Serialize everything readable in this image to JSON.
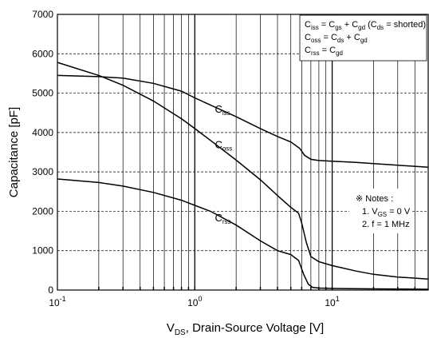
{
  "chart_data": {
    "type": "line",
    "xscale": "log",
    "xlim": [
      0.1,
      50
    ],
    "ylim": [
      0,
      7000
    ],
    "grid": true,
    "xlabel": {
      "main": "V",
      "sub": "DS",
      "rest": ", Drain-Source Voltage [V]"
    },
    "ylabel": "Capacitance [pF]",
    "y_ticks": [
      0,
      1000,
      2000,
      3000,
      4000,
      5000,
      6000,
      7000
    ],
    "x_ticks": [
      {
        "value": 0.1,
        "base": "10",
        "exp": "-1"
      },
      {
        "value": 1,
        "base": "10",
        "exp": "0"
      },
      {
        "value": 10,
        "base": "10",
        "exp": "1"
      }
    ],
    "series": [
      {
        "name": {
          "main": "C",
          "sub": "iss"
        },
        "label_at": [
          1.4,
          4500
        ],
        "x": [
          0.1,
          0.2,
          0.3,
          0.5,
          0.8,
          1.0,
          1.3,
          2,
          3,
          4,
          5,
          5.8,
          6.3,
          7,
          8,
          10,
          15,
          20,
          30,
          50
        ],
        "y": [
          5450,
          5420,
          5380,
          5250,
          5050,
          4880,
          4700,
          4400,
          4100,
          3900,
          3760,
          3600,
          3420,
          3320,
          3290,
          3270,
          3240,
          3210,
          3170,
          3120
        ]
      },
      {
        "name": {
          "main": "C",
          "sub": "oss"
        },
        "label_at": [
          1.4,
          3600
        ],
        "x": [
          0.1,
          0.2,
          0.3,
          0.5,
          0.8,
          1.0,
          1.3,
          2,
          3,
          4,
          5,
          5.7,
          6.0,
          6.5,
          7,
          8,
          10,
          15,
          20,
          30,
          50
        ],
        "y": [
          5780,
          5450,
          5200,
          4800,
          4350,
          4100,
          3800,
          3300,
          2800,
          2400,
          2100,
          1950,
          1700,
          1200,
          850,
          720,
          620,
          480,
          400,
          330,
          280
        ]
      },
      {
        "name": {
          "main": "C",
          "sub": "rss"
        },
        "label_at": [
          1.4,
          1750
        ],
        "x": [
          0.1,
          0.2,
          0.3,
          0.5,
          0.8,
          1.0,
          1.3,
          2,
          3,
          4,
          5,
          5.7,
          6.2,
          6.7,
          7.2,
          8,
          10,
          20,
          50
        ],
        "y": [
          2820,
          2730,
          2640,
          2480,
          2280,
          2150,
          2000,
          1650,
          1250,
          1000,
          900,
          750,
          400,
          150,
          70,
          50,
          40,
          30,
          20
        ]
      }
    ],
    "legend": {
      "position": "top-right",
      "lines": [
        [
          {
            "t": "C"
          },
          {
            "s": "iss"
          },
          {
            "t": " = C"
          },
          {
            "s": "gs"
          },
          {
            "t": " + C"
          },
          {
            "s": "gd"
          },
          {
            "t": " (C"
          },
          {
            "s": "ds"
          },
          {
            "t": " = shorted)"
          }
        ],
        [
          {
            "t": "C"
          },
          {
            "s": "oss"
          },
          {
            "t": " = C"
          },
          {
            "s": "ds"
          },
          {
            "t": " + C"
          },
          {
            "s": "gd"
          }
        ],
        [
          {
            "t": "C"
          },
          {
            "s": "rss"
          },
          {
            "t": " = C"
          },
          {
            "s": "gd"
          }
        ]
      ]
    },
    "notes": {
      "lines": [
        [
          {
            "t": "※ Notes :"
          }
        ],
        [
          {
            "t": "1. V"
          },
          {
            "s": "GS"
          },
          {
            "t": " = 0 V"
          }
        ],
        [
          {
            "t": "2. f = 1 MHz"
          }
        ]
      ]
    }
  }
}
